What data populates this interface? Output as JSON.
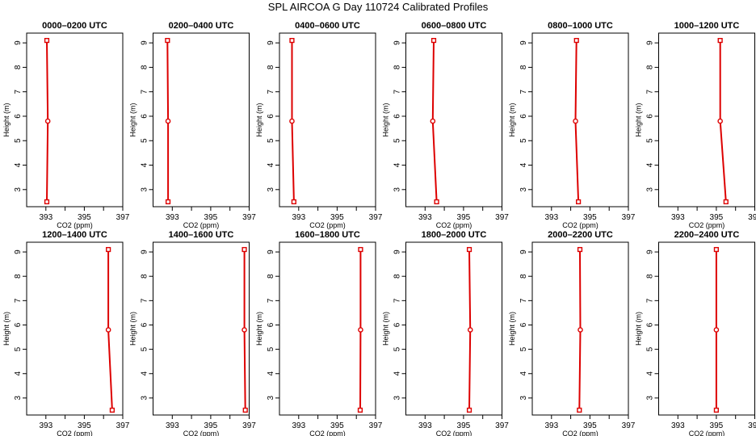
{
  "figure": {
    "title": "SPL AIRCOA G  Day 110724  Calibrated Profiles"
  },
  "chart_data": {
    "type": "line",
    "xlabel": "CO2 (ppm)",
    "ylabel": "Height (m)",
    "xlim": [
      392,
      397
    ],
    "ylim": [
      2.3,
      9.4
    ],
    "xtick_labels": [
      "393",
      "395",
      "397"
    ],
    "ytick_labels": [
      "3",
      "4",
      "5",
      "6",
      "7",
      "8",
      "9"
    ],
    "line_color": "#dd0000",
    "panels": [
      {
        "title": "0000–0200 UTC",
        "series": [
          {
            "x": [
              393.05,
              393.1,
              393.05
            ],
            "y": [
              2.5,
              5.8,
              9.1
            ]
          }
        ]
      },
      {
        "title": "0200–0400 UTC",
        "series": [
          {
            "x": [
              392.78,
              392.78,
              392.75
            ],
            "y": [
              2.5,
              5.8,
              9.1
            ]
          }
        ]
      },
      {
        "title": "0400–0600 UTC",
        "series": [
          {
            "x": [
              392.75,
              392.65,
              392.65
            ],
            "y": [
              2.5,
              5.8,
              9.1
            ]
          }
        ]
      },
      {
        "title": "0600–0800 UTC",
        "series": [
          {
            "x": [
              393.6,
              393.4,
              393.45
            ],
            "y": [
              2.5,
              5.8,
              9.1
            ]
          }
        ]
      },
      {
        "title": "0800–1000 UTC",
        "series": [
          {
            "x": [
              394.4,
              394.25,
              394.3
            ],
            "y": [
              2.5,
              5.8,
              9.1
            ]
          }
        ]
      },
      {
        "title": "1000–1200 UTC",
        "series": [
          {
            "x": [
              395.5,
              395.2,
              395.2
            ],
            "y": [
              2.5,
              5.8,
              9.1
            ]
          }
        ]
      },
      {
        "title": "1200–1400 UTC",
        "series": [
          {
            "x": [
              396.45,
              396.25,
              396.25
            ],
            "y": [
              2.5,
              5.8,
              9.1
            ]
          }
        ]
      },
      {
        "title": "1400–1600 UTC",
        "series": [
          {
            "x": [
              396.8,
              396.75,
              396.75
            ],
            "y": [
              2.5,
              5.8,
              9.1
            ]
          }
        ]
      },
      {
        "title": "1600–1800 UTC",
        "series": [
          {
            "x": [
              396.2,
              396.22,
              396.22
            ],
            "y": [
              2.5,
              5.8,
              9.1
            ]
          }
        ]
      },
      {
        "title": "1800–2000 UTC",
        "series": [
          {
            "x": [
              395.3,
              395.35,
              395.3
            ],
            "y": [
              2.5,
              5.8,
              9.1
            ]
          }
        ]
      },
      {
        "title": "2000–2200 UTC",
        "series": [
          {
            "x": [
              394.45,
              394.5,
              394.48
            ],
            "y": [
              2.5,
              5.8,
              9.1
            ]
          }
        ]
      },
      {
        "title": "2200–2400 UTC",
        "series": [
          {
            "x": [
              395.0,
              395.0,
              395.0
            ],
            "y": [
              2.5,
              5.8,
              9.1
            ]
          }
        ]
      }
    ]
  }
}
